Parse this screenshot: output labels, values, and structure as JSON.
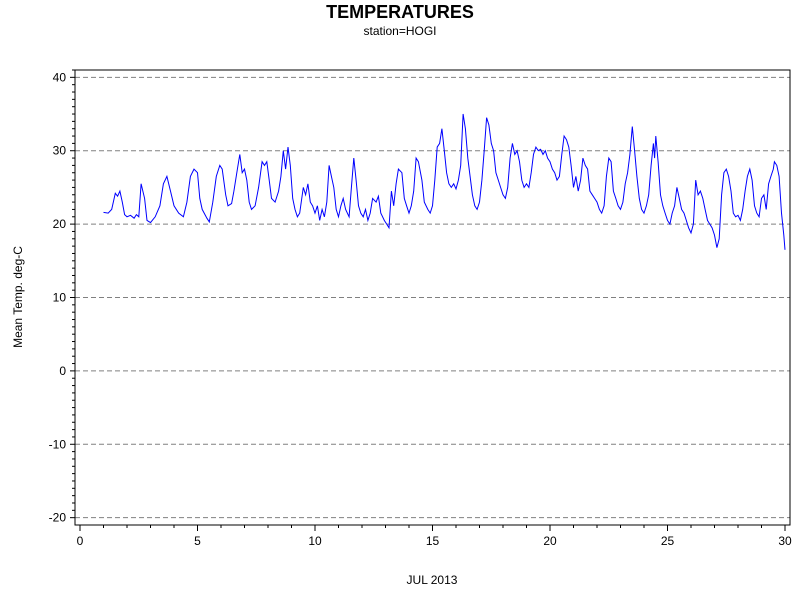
{
  "chart_data": {
    "type": "line",
    "title": "TEMPERATURES",
    "subtitle": "station=HOGI",
    "xlabel": "JUL 2013",
    "ylabel": "Mean Temp. deg-C",
    "xlim": [
      0,
      30
    ],
    "ylim": [
      -21,
      41
    ],
    "x_ticks": [
      0,
      5,
      10,
      15,
      20,
      25,
      30
    ],
    "y_ticks": [
      -20,
      -10,
      0,
      10,
      20,
      30,
      40
    ],
    "grid": "horizontal-dashed",
    "series": [
      {
        "color": "#0000ff",
        "points": [
          [
            1.0,
            21.6
          ],
          [
            1.2,
            21.5
          ],
          [
            1.35,
            22.0
          ],
          [
            1.5,
            24.2
          ],
          [
            1.6,
            23.8
          ],
          [
            1.7,
            24.5
          ],
          [
            1.8,
            23.0
          ],
          [
            1.9,
            21.3
          ],
          [
            2.0,
            21.0
          ],
          [
            2.15,
            21.2
          ],
          [
            2.3,
            20.8
          ],
          [
            2.4,
            21.3
          ],
          [
            2.5,
            21.0
          ],
          [
            2.6,
            25.5
          ],
          [
            2.75,
            23.5
          ],
          [
            2.85,
            20.5
          ],
          [
            3.0,
            20.2
          ],
          [
            3.2,
            21.0
          ],
          [
            3.4,
            22.5
          ],
          [
            3.55,
            25.5
          ],
          [
            3.7,
            26.5
          ],
          [
            3.85,
            24.5
          ],
          [
            4.0,
            22.5
          ],
          [
            4.2,
            21.5
          ],
          [
            4.4,
            21.0
          ],
          [
            4.55,
            23.0
          ],
          [
            4.7,
            26.5
          ],
          [
            4.85,
            27.5
          ],
          [
            5.0,
            27.0
          ],
          [
            5.1,
            23.5
          ],
          [
            5.2,
            22.0
          ],
          [
            5.4,
            20.8
          ],
          [
            5.5,
            20.3
          ],
          [
            5.65,
            23.0
          ],
          [
            5.8,
            26.5
          ],
          [
            5.95,
            28.0
          ],
          [
            6.05,
            27.5
          ],
          [
            6.2,
            24.0
          ],
          [
            6.3,
            22.5
          ],
          [
            6.45,
            22.8
          ],
          [
            6.55,
            24.5
          ],
          [
            6.7,
            27.5
          ],
          [
            6.8,
            29.5
          ],
          [
            6.9,
            27.0
          ],
          [
            7.0,
            27.5
          ],
          [
            7.1,
            26.0
          ],
          [
            7.2,
            23.0
          ],
          [
            7.3,
            22.0
          ],
          [
            7.45,
            22.5
          ],
          [
            7.6,
            25.0
          ],
          [
            7.75,
            28.5
          ],
          [
            7.85,
            28.0
          ],
          [
            7.95,
            28.5
          ],
          [
            8.05,
            26.0
          ],
          [
            8.15,
            23.5
          ],
          [
            8.3,
            23.0
          ],
          [
            8.45,
            24.5
          ],
          [
            8.55,
            26.5
          ],
          [
            8.65,
            30.0
          ],
          [
            8.75,
            27.5
          ],
          [
            8.85,
            30.5
          ],
          [
            8.95,
            28.0
          ],
          [
            9.05,
            23.5
          ],
          [
            9.15,
            22.0
          ],
          [
            9.25,
            21.0
          ],
          [
            9.35,
            21.5
          ],
          [
            9.5,
            25.0
          ],
          [
            9.6,
            24.0
          ],
          [
            9.7,
            25.5
          ],
          [
            9.8,
            23.0
          ],
          [
            9.9,
            22.5
          ],
          [
            10.0,
            21.5
          ],
          [
            10.1,
            22.5
          ],
          [
            10.2,
            20.5
          ],
          [
            10.3,
            22.0
          ],
          [
            10.4,
            21.0
          ],
          [
            10.5,
            23.0
          ],
          [
            10.6,
            28.0
          ],
          [
            10.7,
            26.5
          ],
          [
            10.8,
            25.0
          ],
          [
            10.9,
            22.0
          ],
          [
            11.0,
            21.0
          ],
          [
            11.1,
            22.5
          ],
          [
            11.2,
            23.5
          ],
          [
            11.3,
            22.0
          ],
          [
            11.45,
            21.0
          ],
          [
            11.55,
            25.0
          ],
          [
            11.65,
            29.0
          ],
          [
            11.75,
            26.0
          ],
          [
            11.85,
            22.5
          ],
          [
            11.95,
            21.5
          ],
          [
            12.05,
            21.0
          ],
          [
            12.15,
            22.0
          ],
          [
            12.25,
            20.5
          ],
          [
            12.35,
            21.5
          ],
          [
            12.45,
            23.5
          ],
          [
            12.6,
            23.0
          ],
          [
            12.7,
            23.8
          ],
          [
            12.8,
            21.5
          ],
          [
            12.95,
            20.5
          ],
          [
            13.05,
            20.0
          ],
          [
            13.15,
            19.5
          ],
          [
            13.25,
            24.5
          ],
          [
            13.35,
            22.5
          ],
          [
            13.45,
            25.5
          ],
          [
            13.55,
            27.5
          ],
          [
            13.7,
            27.0
          ],
          [
            13.8,
            23.5
          ],
          [
            13.9,
            22.5
          ],
          [
            14.0,
            21.5
          ],
          [
            14.1,
            22.5
          ],
          [
            14.2,
            24.5
          ],
          [
            14.3,
            29.0
          ],
          [
            14.4,
            28.5
          ],
          [
            14.55,
            26.0
          ],
          [
            14.65,
            23.0
          ],
          [
            14.8,
            22.0
          ],
          [
            14.9,
            21.5
          ],
          [
            15.0,
            22.5
          ],
          [
            15.1,
            26.0
          ],
          [
            15.2,
            30.5
          ],
          [
            15.3,
            31.0
          ],
          [
            15.4,
            33.0
          ],
          [
            15.5,
            30.0
          ],
          [
            15.6,
            27.0
          ],
          [
            15.7,
            25.5
          ],
          [
            15.8,
            25.0
          ],
          [
            15.9,
            25.5
          ],
          [
            16.0,
            24.8
          ],
          [
            16.1,
            26.0
          ],
          [
            16.2,
            28.0
          ],
          [
            16.3,
            35.0
          ],
          [
            16.4,
            33.0
          ],
          [
            16.5,
            29.0
          ],
          [
            16.6,
            26.5
          ],
          [
            16.7,
            24.0
          ],
          [
            16.8,
            22.5
          ],
          [
            16.9,
            22.0
          ],
          [
            17.0,
            23.0
          ],
          [
            17.1,
            26.0
          ],
          [
            17.2,
            30.0
          ],
          [
            17.3,
            34.5
          ],
          [
            17.4,
            33.5
          ],
          [
            17.5,
            31.0
          ],
          [
            17.6,
            30.0
          ],
          [
            17.7,
            27.0
          ],
          [
            17.8,
            26.0
          ],
          [
            17.9,
            25.0
          ],
          [
            18.0,
            24.0
          ],
          [
            18.1,
            23.5
          ],
          [
            18.2,
            25.0
          ],
          [
            18.3,
            29.0
          ],
          [
            18.4,
            31.0
          ],
          [
            18.5,
            29.5
          ],
          [
            18.6,
            30.0
          ],
          [
            18.7,
            28.5
          ],
          [
            18.8,
            26.0
          ],
          [
            18.9,
            25.0
          ],
          [
            19.0,
            25.5
          ],
          [
            19.1,
            25.0
          ],
          [
            19.2,
            27.0
          ],
          [
            19.3,
            29.5
          ],
          [
            19.4,
            30.5
          ],
          [
            19.5,
            30.0
          ],
          [
            19.6,
            30.2
          ],
          [
            19.7,
            29.5
          ],
          [
            19.8,
            30.0
          ],
          [
            19.9,
            29.0
          ],
          [
            20.0,
            28.5
          ],
          [
            20.1,
            27.5
          ],
          [
            20.2,
            27.0
          ],
          [
            20.3,
            26.0
          ],
          [
            20.4,
            26.5
          ],
          [
            20.5,
            29.5
          ],
          [
            20.6,
            32.0
          ],
          [
            20.7,
            31.5
          ],
          [
            20.8,
            30.5
          ],
          [
            20.9,
            28.0
          ],
          [
            21.0,
            25.0
          ],
          [
            21.1,
            26.5
          ],
          [
            21.2,
            24.5
          ],
          [
            21.3,
            26.0
          ],
          [
            21.4,
            29.0
          ],
          [
            21.5,
            28.0
          ],
          [
            21.6,
            27.5
          ],
          [
            21.7,
            24.5
          ],
          [
            21.8,
            24.0
          ],
          [
            21.9,
            23.5
          ],
          [
            22.0,
            23.0
          ],
          [
            22.1,
            22.0
          ],
          [
            22.2,
            21.5
          ],
          [
            22.3,
            22.5
          ],
          [
            22.4,
            26.5
          ],
          [
            22.5,
            29.0
          ],
          [
            22.6,
            28.5
          ],
          [
            22.7,
            24.5
          ],
          [
            22.8,
            23.5
          ],
          [
            22.9,
            22.5
          ],
          [
            23.0,
            22.0
          ],
          [
            23.1,
            23.0
          ],
          [
            23.2,
            25.5
          ],
          [
            23.3,
            27.0
          ],
          [
            23.4,
            29.5
          ],
          [
            23.5,
            33.3
          ],
          [
            23.6,
            30.0
          ],
          [
            23.7,
            26.5
          ],
          [
            23.8,
            23.5
          ],
          [
            23.9,
            22.0
          ],
          [
            24.0,
            21.5
          ],
          [
            24.1,
            22.5
          ],
          [
            24.2,
            24.0
          ],
          [
            24.3,
            28.0
          ],
          [
            24.4,
            31.0
          ],
          [
            24.45,
            29.0
          ],
          [
            24.5,
            32.0
          ],
          [
            24.6,
            28.5
          ],
          [
            24.7,
            24.0
          ],
          [
            24.8,
            22.5
          ],
          [
            24.9,
            21.5
          ],
          [
            25.0,
            20.5
          ],
          [
            25.1,
            20.0
          ],
          [
            25.2,
            21.5
          ],
          [
            25.3,
            22.5
          ],
          [
            25.4,
            25.0
          ],
          [
            25.5,
            23.5
          ],
          [
            25.6,
            22.0
          ],
          [
            25.7,
            21.5
          ],
          [
            25.8,
            20.5
          ],
          [
            25.9,
            19.5
          ],
          [
            26.0,
            18.8
          ],
          [
            26.1,
            20.0
          ],
          [
            26.2,
            26.0
          ],
          [
            26.3,
            24.0
          ],
          [
            26.4,
            24.5
          ],
          [
            26.5,
            23.5
          ],
          [
            26.6,
            22.0
          ],
          [
            26.7,
            20.5
          ],
          [
            26.8,
            20.0
          ],
          [
            26.9,
            19.5
          ],
          [
            27.0,
            18.5
          ],
          [
            27.1,
            16.8
          ],
          [
            27.2,
            18.0
          ],
          [
            27.3,
            24.0
          ],
          [
            27.4,
            27.0
          ],
          [
            27.5,
            27.5
          ],
          [
            27.6,
            26.5
          ],
          [
            27.7,
            24.5
          ],
          [
            27.8,
            21.5
          ],
          [
            27.9,
            21.0
          ],
          [
            28.0,
            21.2
          ],
          [
            28.1,
            20.5
          ],
          [
            28.2,
            22.0
          ],
          [
            28.3,
            24.5
          ],
          [
            28.4,
            26.5
          ],
          [
            28.5,
            27.5
          ],
          [
            28.6,
            26.0
          ],
          [
            28.7,
            22.5
          ],
          [
            28.8,
            21.5
          ],
          [
            28.9,
            21.0
          ],
          [
            29.0,
            23.5
          ],
          [
            29.1,
            24.0
          ],
          [
            29.2,
            22.0
          ],
          [
            29.3,
            25.5
          ],
          [
            29.4,
            26.5
          ],
          [
            29.5,
            27.5
          ],
          [
            29.55,
            28.5
          ],
          [
            29.65,
            28.0
          ],
          [
            29.75,
            26.5
          ],
          [
            29.85,
            21.5
          ],
          [
            29.95,
            18.5
          ],
          [
            30.0,
            16.5
          ]
        ]
      }
    ]
  }
}
